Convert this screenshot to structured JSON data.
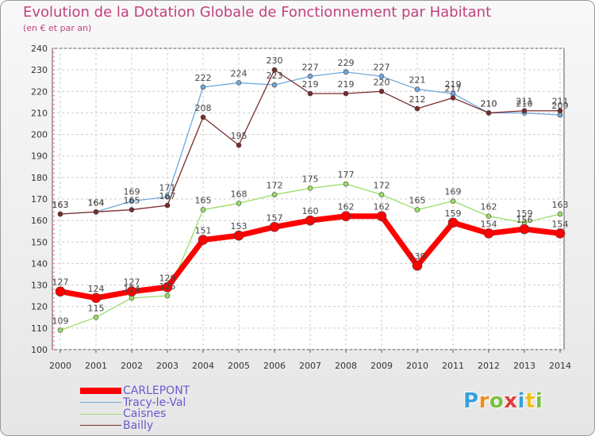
{
  "chart_data": {
    "type": "line",
    "title": "Evolution de la Dotation Globale de Fonctionnement par Habitant",
    "subtitle": "(en € et par an)",
    "xlabel": "",
    "ylabel": "",
    "ylim": [
      100,
      240
    ],
    "yticks": [
      100,
      110,
      120,
      130,
      140,
      150,
      160,
      170,
      180,
      190,
      200,
      210,
      220,
      230,
      240
    ],
    "categories": [
      "2000",
      "2001",
      "2002",
      "2003",
      "2004",
      "2005",
      "2006",
      "2007",
      "2008",
      "2009",
      "2010",
      "2011",
      "2012",
      "2013",
      "2014"
    ],
    "grid": true,
    "legend_position": "bottom-left",
    "series": [
      {
        "name": "CARLEPONT",
        "color": "#ff0000",
        "values": [
          127,
          124,
          127,
          129,
          151,
          153,
          157,
          160,
          162,
          162,
          139,
          159,
          154,
          156,
          154
        ]
      },
      {
        "name": "Tracy-le-Val",
        "color": "#6fa8dc",
        "values": [
          163,
          164,
          169,
          171,
          222,
          224,
          223,
          227,
          229,
          227,
          221,
          219,
          210,
          210,
          209
        ]
      },
      {
        "name": "Caisnes",
        "color": "#99dd66",
        "values": [
          109,
          115,
          124,
          125,
          165,
          168,
          172,
          175,
          177,
          172,
          165,
          169,
          162,
          159,
          163
        ]
      },
      {
        "name": "Bailly",
        "color": "#7b2a2a",
        "values": [
          163,
          164,
          165,
          167,
          208,
          195,
          230,
          219,
          219,
          220,
          212,
          217,
          210,
          211,
          211
        ]
      }
    ]
  },
  "logo": {
    "letters": [
      "P",
      "r",
      "o",
      "x",
      "i",
      "t",
      "i"
    ],
    "colors": [
      "#3aa0dc",
      "#f08a1c",
      "#7ac143",
      "#e23c3c",
      "#3aa0dc",
      "#f0c020",
      "#7ac143"
    ]
  }
}
